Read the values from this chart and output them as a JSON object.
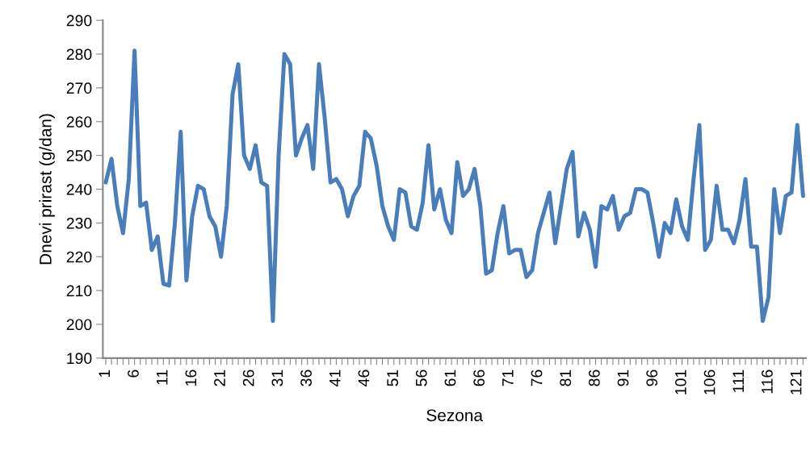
{
  "chart_data": {
    "type": "line",
    "xlabel": "Sezona",
    "ylabel": "Dnevi prirast (g/dan)",
    "categories": [
      "1",
      null,
      null,
      null,
      null,
      "6",
      null,
      null,
      null,
      null,
      "11",
      null,
      null,
      null,
      null,
      "16",
      null,
      null,
      null,
      null,
      "21",
      null,
      null,
      null,
      null,
      "26",
      null,
      null,
      null,
      null,
      "31",
      null,
      null,
      null,
      null,
      "36",
      null,
      null,
      null,
      null,
      "41",
      null,
      null,
      null,
      null,
      "46",
      null,
      null,
      null,
      null,
      "51",
      null,
      null,
      null,
      null,
      "56",
      null,
      null,
      null,
      null,
      "61",
      null,
      null,
      null,
      null,
      "66",
      null,
      null,
      null,
      null,
      "71",
      null,
      null,
      null,
      null,
      "76",
      null,
      null,
      null,
      null,
      "81",
      null,
      null,
      null,
      null,
      "86",
      null,
      null,
      null,
      null,
      "91",
      null,
      null,
      null,
      null,
      "96",
      null,
      null,
      null,
      null,
      "101",
      null,
      null,
      null,
      null,
      "106",
      null,
      null,
      null,
      null,
      "111",
      null,
      null,
      null,
      null,
      "116",
      null,
      null,
      null,
      null,
      "121",
      null
    ],
    "series": [
      {
        "color": "#4a7ebb",
        "values": [
          242,
          249,
          235,
          227,
          243,
          281,
          235,
          236,
          222,
          226,
          212,
          211.5,
          230,
          257,
          213,
          232,
          241,
          240,
          232,
          229,
          220,
          235,
          268,
          277,
          250,
          246,
          253,
          242,
          241,
          201,
          250,
          280,
          277,
          250,
          255,
          259,
          246,
          277,
          261,
          242,
          243,
          240,
          232,
          238,
          241,
          257,
          255,
          247,
          235,
          229,
          225,
          240,
          239,
          229,
          228,
          236,
          253,
          234,
          240,
          231,
          227,
          248,
          238,
          240,
          246,
          235,
          215,
          216,
          227,
          235,
          221,
          222,
          222,
          214,
          216,
          227,
          233,
          239,
          224,
          235,
          246,
          251,
          226,
          233,
          228,
          217,
          235,
          234,
          238,
          228,
          232,
          233,
          240,
          240,
          239,
          230,
          220,
          230,
          227,
          237,
          229,
          225,
          243,
          259,
          222,
          225,
          241,
          228,
          228,
          224,
          231,
          243,
          223,
          223,
          201,
          208,
          240,
          227,
          238,
          239,
          259,
          238
        ]
      }
    ],
    "ylim": [
      190,
      290
    ],
    "yticks": [
      190,
      200,
      210,
      220,
      230,
      240,
      250,
      260,
      270,
      280,
      290
    ],
    "grid": false,
    "marker": "none",
    "line_style": "solid"
  }
}
